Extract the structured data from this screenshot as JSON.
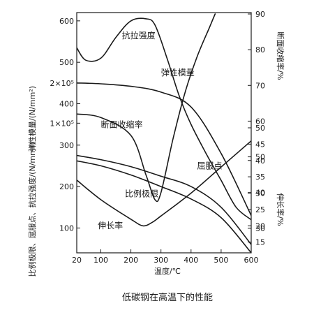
{
  "chart_data": {
    "type": "line",
    "caption": "低碳钢在高温下的性能",
    "xlabel": "温度/℃",
    "x_ticks": [
      20,
      100,
      200,
      300,
      400,
      500,
      600
    ],
    "left_axis": {
      "ylabel_upper": "弹性模量/(N/mm²)",
      "ylabel_lower": "比例极限、屈服点、抗拉强度/(N/mm²)",
      "ylim": [
        40,
        620
      ],
      "ticks": [
        {
          "label": "600",
          "value": 600
        },
        {
          "label": "500",
          "value": 500
        },
        {
          "label": "2×10⁵",
          "value": 450
        },
        {
          "label": "400",
          "value": 400
        },
        {
          "label": "1×10⁵",
          "value": 353
        },
        {
          "label": "300",
          "value": 300
        },
        {
          "label": "200",
          "value": 200
        },
        {
          "label": "100",
          "value": 100
        }
      ]
    },
    "right_axis_upper": {
      "ylabel": "断面收缩率/%",
      "ylim": [
        20,
        90
      ],
      "ticks": [
        90,
        80,
        70,
        60,
        50,
        40,
        30
      ]
    },
    "right_axis_lower": {
      "ylabel": "伸长率/%",
      "ylim": [
        10,
        50
      ],
      "ticks": [
        50,
        45,
        40,
        35,
        30,
        25,
        20,
        15
      ]
    },
    "series": [
      {
        "name": "抗拉强度",
        "axis": "left",
        "x": [
          20,
          50,
          100,
          150,
          200,
          250,
          280,
          320,
          360,
          400,
          450,
          500,
          550,
          600
        ],
        "y": [
          535,
          505,
          510,
          560,
          600,
          605,
          590,
          510,
          420,
          350,
          280,
          215,
          150,
          120
        ]
      },
      {
        "name": "弹性模量",
        "axis": "left",
        "x": [
          20,
          100,
          200,
          300,
          400,
          500,
          600
        ],
        "y": [
          450,
          448,
          442,
          428,
          392,
          280,
          130
        ]
      },
      {
        "name": "断面收缩率",
        "axis": "right_upper",
        "x": [
          20,
          100,
          200,
          250,
          280,
          300,
          340,
          380,
          420,
          460,
          480
        ],
        "y": [
          62,
          61,
          56,
          45,
          38,
          40,
          55,
          68,
          78,
          86,
          90
        ]
      },
      {
        "name": "屈服点",
        "axis": "left",
        "x": [
          20,
          100,
          200,
          300,
          400,
          500,
          600
        ],
        "y": [
          275,
          265,
          248,
          225,
          200,
          150,
          60
        ]
      },
      {
        "name": "比例极限",
        "axis": "left",
        "x": [
          20,
          100,
          200,
          300,
          400,
          500,
          600
        ],
        "y": [
          262,
          250,
          228,
          200,
          170,
          125,
          40
        ]
      },
      {
        "name": "伸长率",
        "axis": "right_lower",
        "x": [
          20,
          100,
          200,
          240,
          270,
          300,
          400,
          500,
          600
        ],
        "y": [
          34,
          28,
          22,
          20,
          21,
          23,
          30,
          38,
          46
        ]
      }
    ],
    "annotations": [
      {
        "text": "抗拉强度",
        "x": 170,
        "y": 558
      },
      {
        "text": "弹性模量",
        "x": 300,
        "y": 468
      },
      {
        "text": "断面收缩率",
        "x": 100,
        "y": 343
      },
      {
        "text": "屈服点",
        "x": 420,
        "y": 243
      },
      {
        "text": "比例极限",
        "x": 180,
        "y": 176
      },
      {
        "text": "伸长率",
        "x": 90,
        "y": 99
      }
    ]
  }
}
